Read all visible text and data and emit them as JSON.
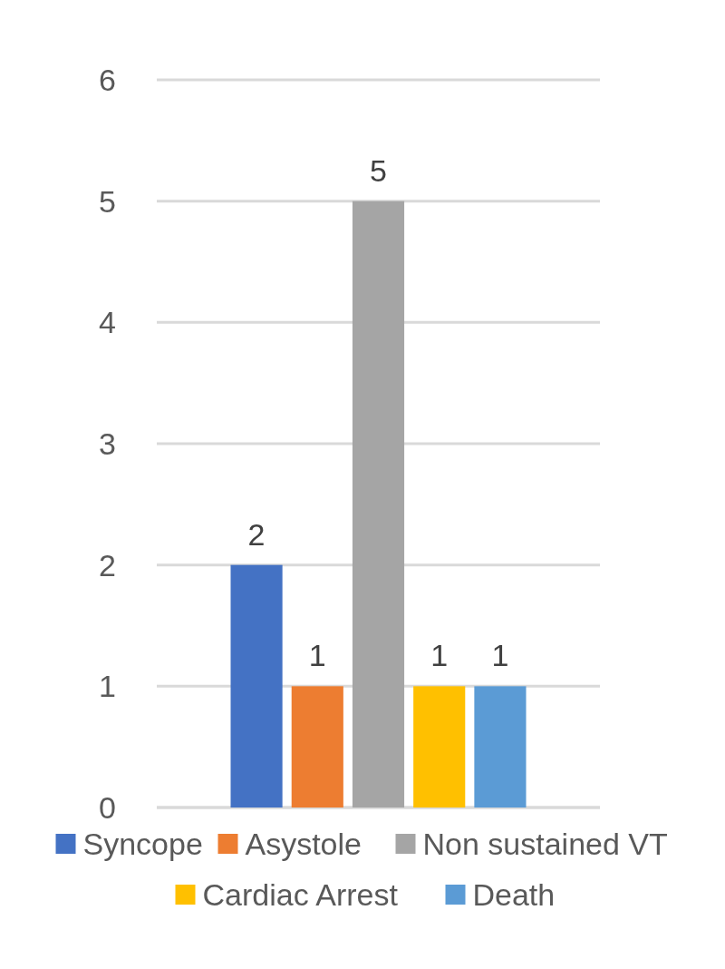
{
  "chart_data": {
    "type": "bar",
    "categories": [
      null
    ],
    "series": [
      {
        "name": "Syncope",
        "color": "#4472c4",
        "values": [
          2
        ]
      },
      {
        "name": "Asystole",
        "color": "#ed7d31",
        "values": [
          1
        ]
      },
      {
        "name": "Non sustained VT",
        "color": "#a5a5a5",
        "values": [
          5
        ]
      },
      {
        "name": "Cardiac Arrest",
        "color": "#ffc000",
        "values": [
          1
        ]
      },
      {
        "name": "Death",
        "color": "#5b9bd5",
        "values": [
          1
        ]
      }
    ],
    "ylim": [
      0,
      6
    ],
    "yticks": [
      0,
      1,
      2,
      3,
      4,
      5,
      6
    ],
    "grid": "y",
    "legend": "bottom",
    "data_labels": true
  }
}
